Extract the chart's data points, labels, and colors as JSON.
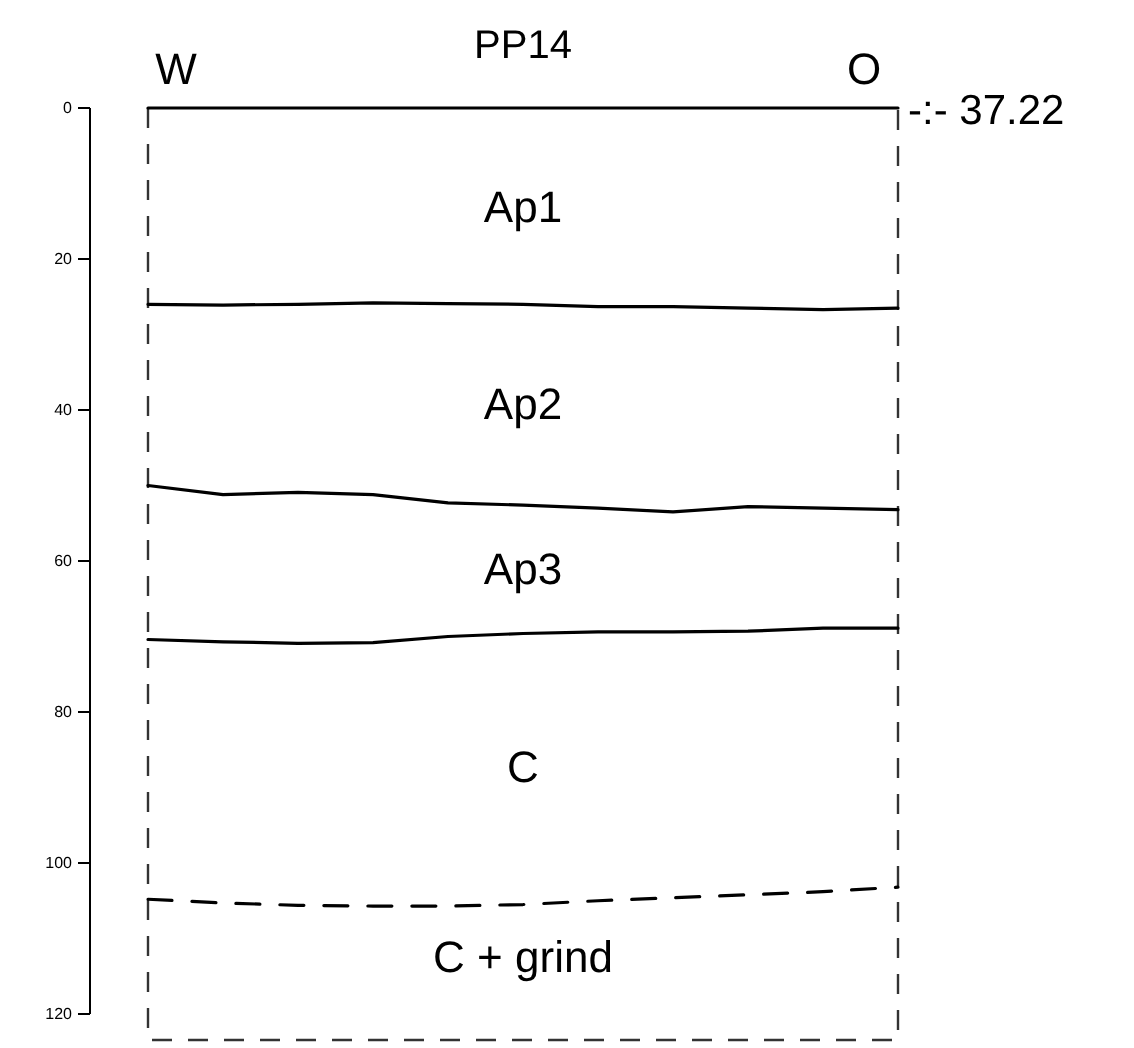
{
  "chart_data": {
    "type": "line",
    "title": "PP14",
    "categories": [
      null,
      null,
      null,
      null,
      null,
      null,
      null,
      null,
      null,
      null,
      null
    ],
    "ylim": [
      120,
      0
    ],
    "yticks": [
      0,
      20,
      40,
      60,
      80,
      100,
      120
    ],
    "series": [
      {
        "color": "#000000",
        "values": [
          0,
          0,
          0,
          0,
          0,
          0,
          0,
          0,
          0,
          0,
          0
        ]
      },
      {
        "color": "#000000",
        "values": [
          26,
          26.1,
          26,
          25.8,
          25.9,
          26,
          26.3,
          26.3,
          26.5,
          26.7,
          26.5
        ]
      },
      {
        "color": "#000000",
        "values": [
          50,
          51.2,
          50.9,
          51.2,
          52.3,
          52.6,
          53,
          53.5,
          52.8,
          53,
          53.2
        ]
      },
      {
        "color": "#000000",
        "values": [
          70.4,
          70.7,
          70.9,
          70.8,
          70,
          69.6,
          69.4,
          69.4,
          69.3,
          68.9,
          68.9
        ]
      },
      {
        "color": "#000000",
        "line_style": "dashed",
        "values": [
          104.8,
          105.3,
          105.6,
          105.7,
          105.7,
          105.5,
          105,
          104.6,
          104.2,
          103.8,
          103.2
        ]
      }
    ],
    "annotations": [
      "W",
      "O",
      "-:- 37.22",
      "Ap1",
      "Ap2",
      "Ap3",
      "C",
      "C + grind"
    ]
  }
}
